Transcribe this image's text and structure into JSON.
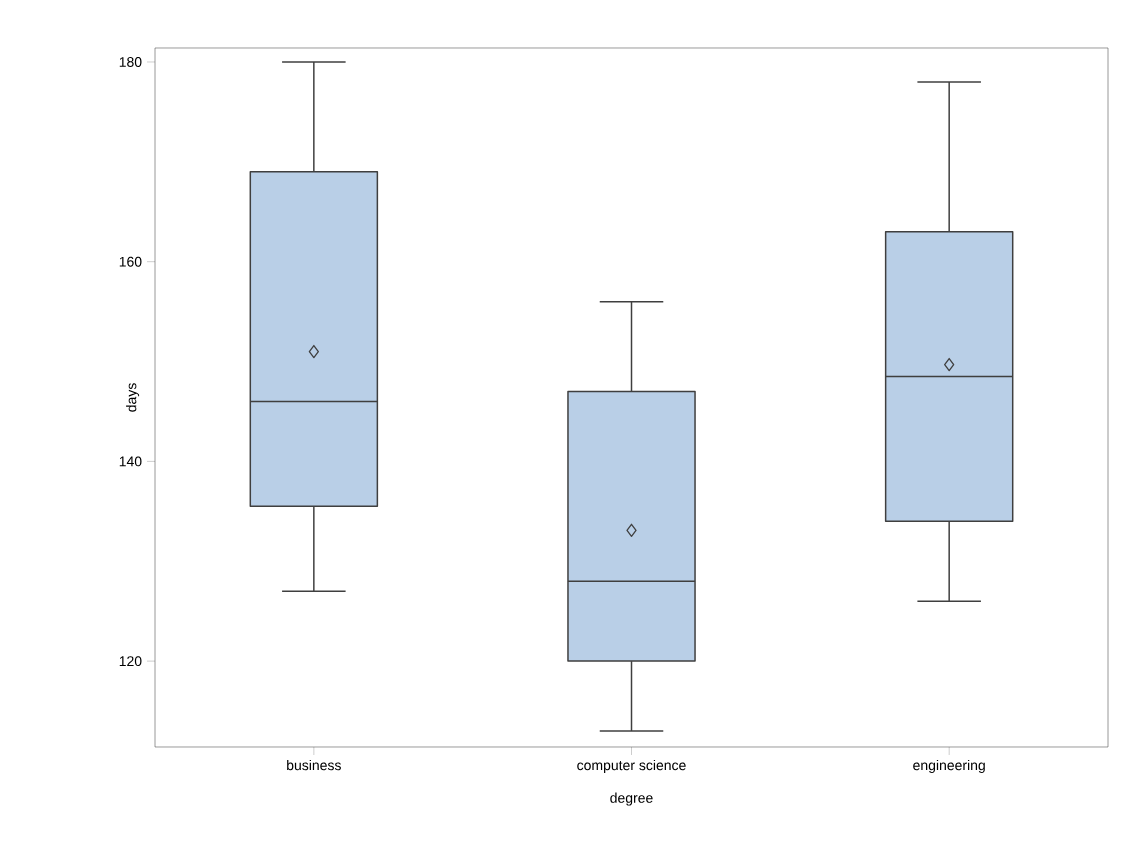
{
  "chart_data": {
    "type": "box",
    "xlabel": "degree",
    "ylabel": "days",
    "categories": [
      "business",
      "computer science",
      "engineering"
    ],
    "boxes": [
      {
        "low": 127,
        "q1": 135.5,
        "median": 146,
        "q3": 169,
        "high": 180,
        "mean": 151
      },
      {
        "low": 113,
        "q1": 120,
        "median": 128,
        "q3": 147,
        "high": 156,
        "mean": 133.1
      },
      {
        "low": 126,
        "q1": 134,
        "median": 148.5,
        "q3": 163,
        "high": 178,
        "mean": 149.7
      }
    ],
    "color": "#b9cfe7",
    "ylim": [
      111.4,
      181.4
    ],
    "yticks": [
      120,
      140,
      160,
      180
    ],
    "marker": "diamond"
  }
}
